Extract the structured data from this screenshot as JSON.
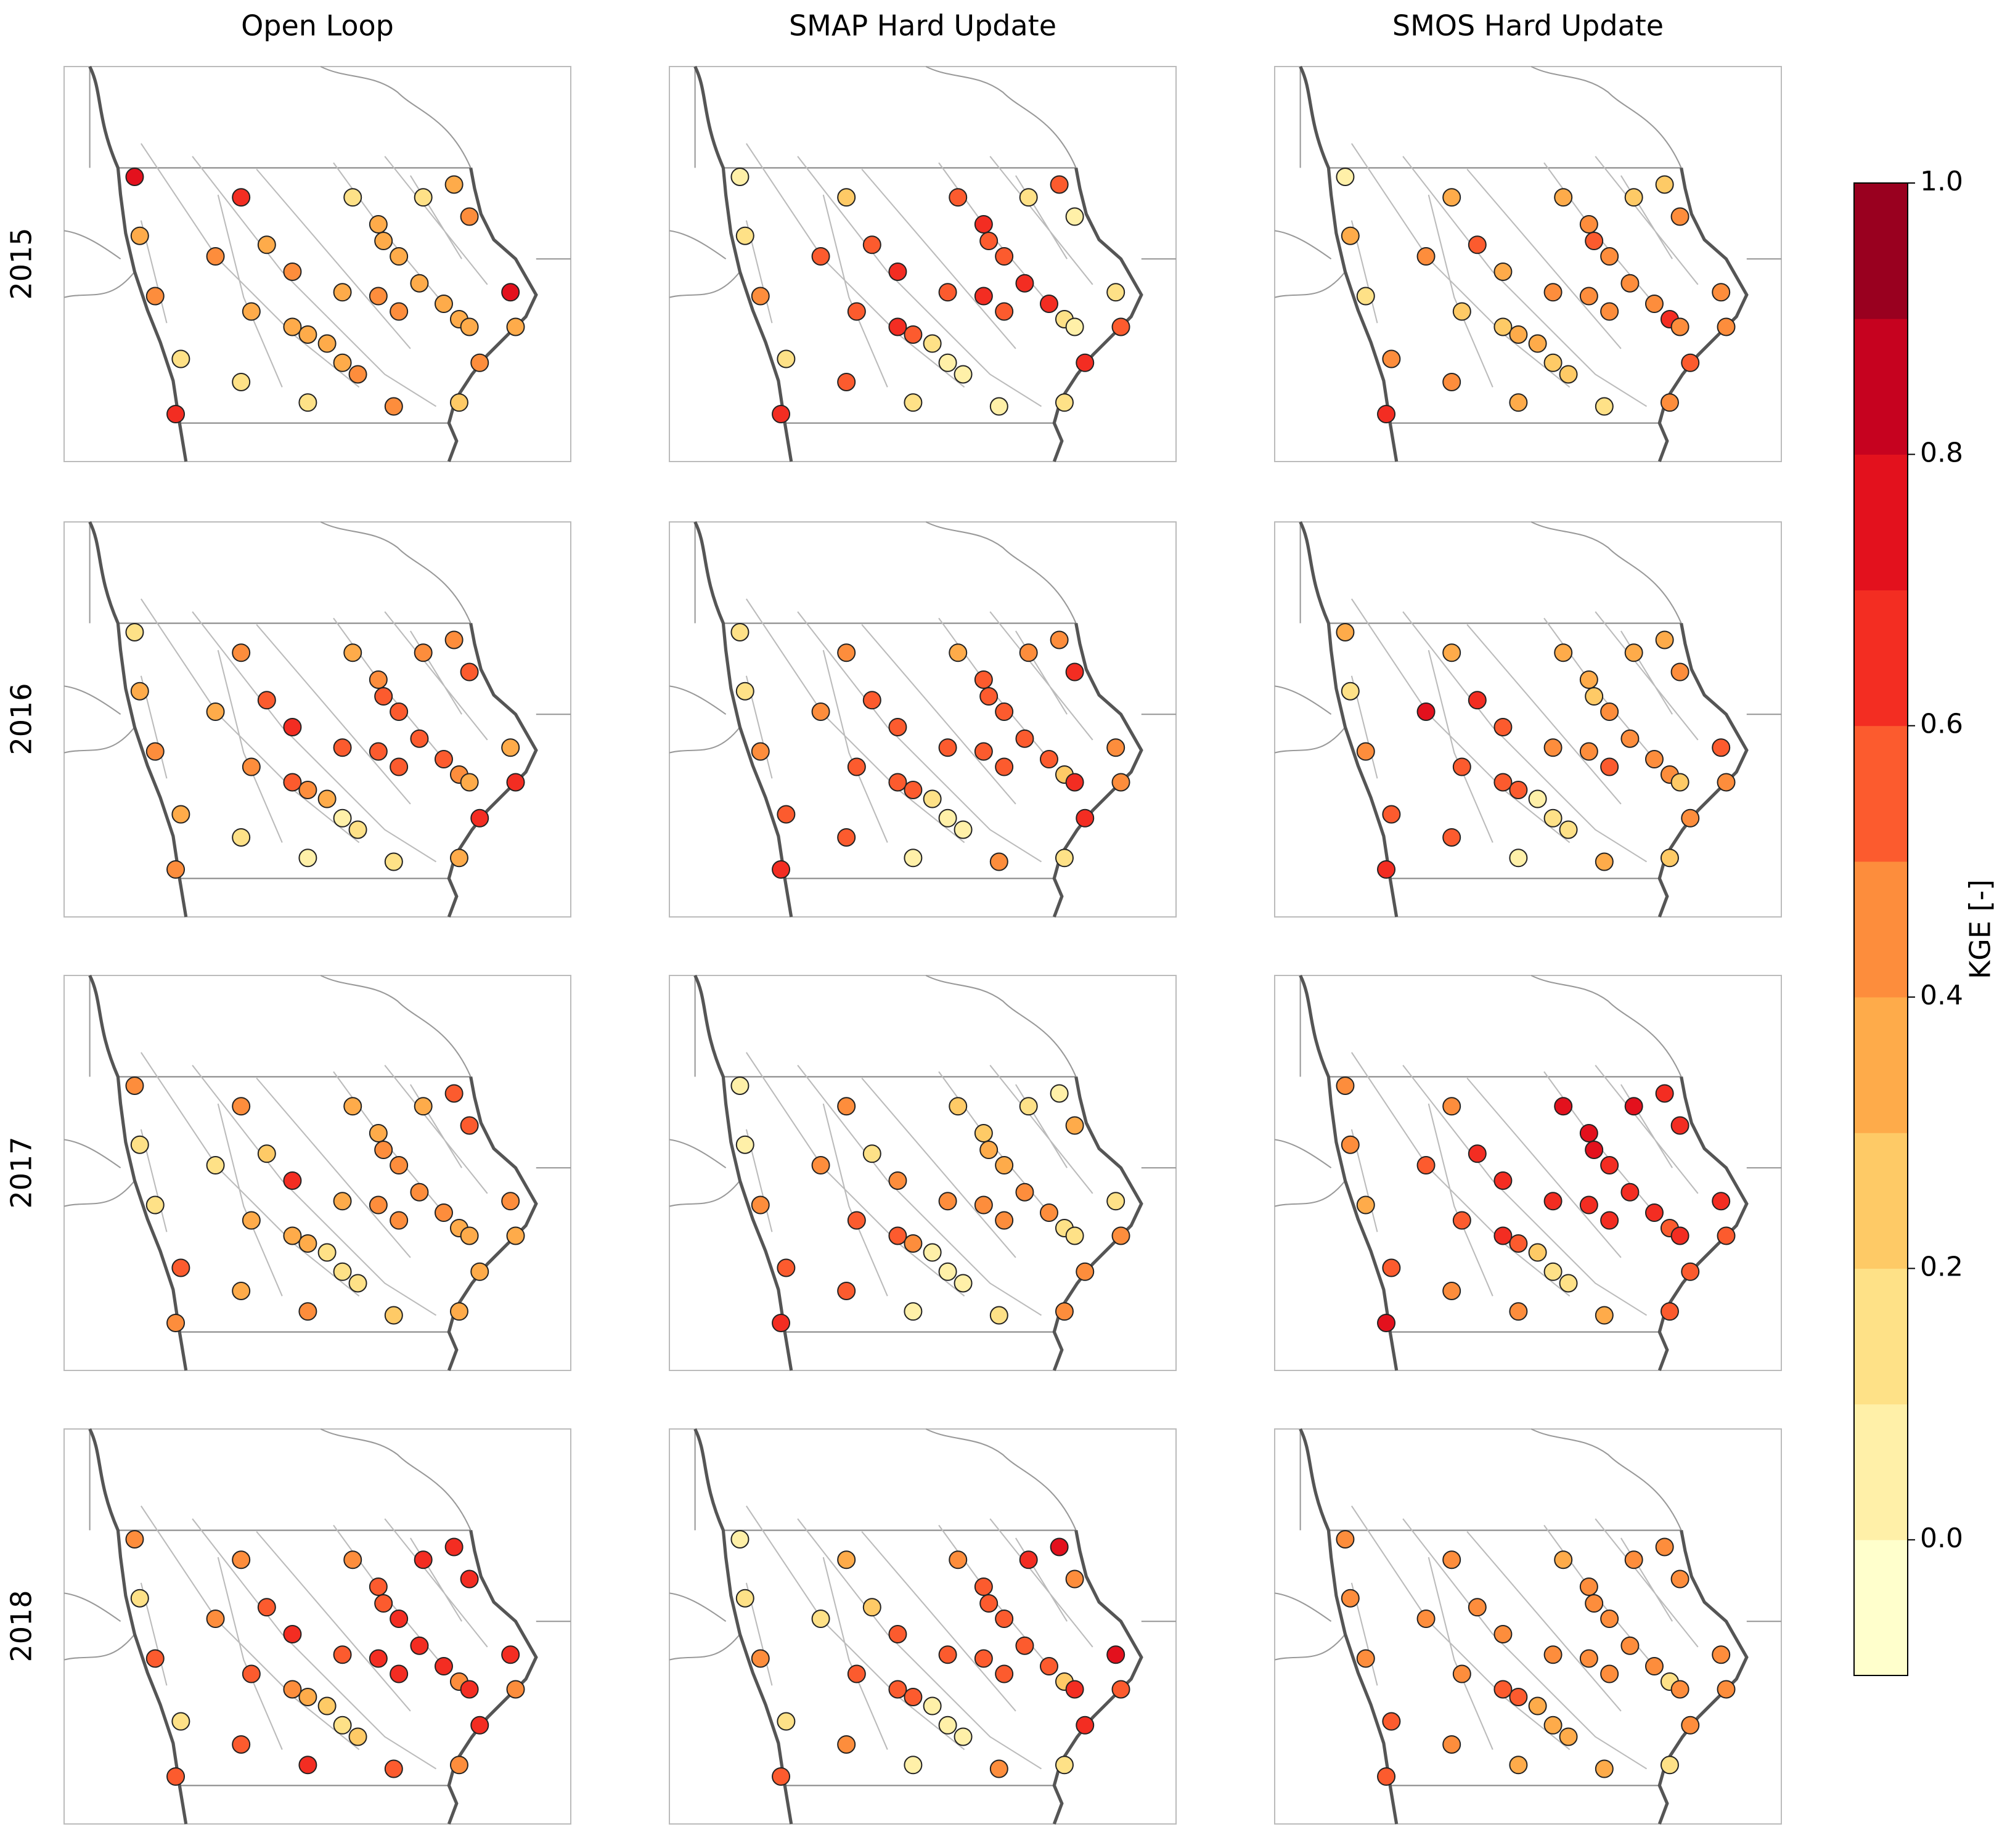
{
  "chart_data": {
    "type": "map",
    "columns": [
      "Open Loop",
      "SMAP Hard Update",
      "SMOS Hard Update"
    ],
    "rows": [
      "2015",
      "2016",
      "2017",
      "2018"
    ],
    "panels": [
      {
        "values": [
          0.75,
          0.35,
          0.4,
          0.1,
          0.7,
          0.7,
          0.45,
          0.35,
          0.4,
          0.3,
          0.35,
          0.35,
          0.35,
          0.35,
          0.4,
          0.1,
          0.1,
          0.15,
          0.3,
          0.3,
          0.35,
          0.35,
          0.35,
          0.3,
          0.35,
          0.15,
          0.3,
          0.45,
          0.75,
          0.35,
          0.4,
          0.4,
          0.4,
          0.2,
          0.4,
          0.3
        ]
      },
      {
        "values": [
          0.05,
          0.1,
          0.4,
          0.1,
          0.7,
          0.2,
          0.55,
          0.6,
          0.7,
          0.5,
          0.7,
          0.6,
          0.1,
          0.05,
          0.05,
          0.1,
          0.5,
          0.55,
          0.7,
          0.5,
          0.55,
          0.65,
          0.7,
          0.1,
          0.05,
          0.1,
          0.6,
          0.05,
          0.1,
          0.6,
          0.65,
          0.55,
          0.7,
          0.1,
          0.05,
          0.6
        ]
      },
      {
        "values": [
          0.05,
          0.3,
          0.1,
          0.4,
          0.7,
          0.3,
          0.4,
          0.5,
          0.35,
          0.25,
          0.25,
          0.3,
          0.3,
          0.2,
          0.25,
          0.3,
          0.4,
          0.3,
          0.45,
          0.5,
          0.45,
          0.4,
          0.45,
          0.65,
          0.4,
          0.2,
          0.2,
          0.45,
          0.4,
          0.4,
          0.4,
          0.45,
          0.5,
          0.4,
          0.1,
          0.4
        ]
      },
      {
        "values": [
          0.1,
          0.35,
          0.45,
          0.3,
          0.45,
          0.4,
          0.35,
          0.5,
          0.7,
          0.45,
          0.5,
          0.45,
          0.3,
          0.05,
          0.1,
          0.05,
          0.1,
          0.35,
          0.45,
          0.6,
          0.5,
          0.6,
          0.55,
          0.45,
          0.3,
          0.4,
          0.45,
          0.6,
          0.35,
          0.7,
          0.6,
          0.5,
          0.7,
          0.3,
          0.15,
          0.55
        ]
      },
      {
        "values": [
          0.1,
          0.1,
          0.4,
          0.5,
          0.65,
          0.45,
          0.45,
          0.55,
          0.5,
          0.55,
          0.6,
          0.55,
          0.1,
          0.05,
          0.05,
          0.05,
          0.55,
          0.35,
          0.5,
          0.55,
          0.55,
          0.6,
          0.55,
          0.2,
          0.65,
          0.45,
          0.4,
          0.7,
          0.45,
          0.4,
          0.6,
          0.55,
          0.7,
          0.1,
          0.4,
          0.55
        ]
      },
      {
        "values": [
          0.3,
          0.15,
          0.45,
          0.6,
          0.7,
          0.35,
          0.75,
          0.65,
          0.55,
          0.6,
          0.55,
          0.55,
          0.05,
          0.1,
          0.1,
          0.05,
          0.55,
          0.3,
          0.3,
          0.25,
          0.4,
          0.4,
          0.45,
          0.4,
          0.2,
          0.3,
          0.35,
          0.4,
          0.5,
          0.45,
          0.45,
          0.5,
          0.4,
          0.2,
          0.3,
          0.45
        ]
      },
      {
        "values": [
          0.45,
          0.1,
          0.15,
          0.5,
          0.45,
          0.45,
          0.15,
          0.2,
          0.7,
          0.3,
          0.35,
          0.3,
          0.1,
          0.15,
          0.1,
          0.4,
          0.35,
          0.35,
          0.3,
          0.45,
          0.4,
          0.45,
          0.4,
          0.35,
          0.3,
          0.35,
          0.55,
          0.6,
          0.45,
          0.35,
          0.4,
          0.4,
          0.35,
          0.35,
          0.25,
          0.3
        ]
      },
      {
        "values": [
          0.05,
          0.05,
          0.4,
          0.6,
          0.7,
          0.4,
          0.4,
          0.1,
          0.45,
          0.5,
          0.55,
          0.45,
          0.05,
          0.05,
          0.05,
          0.05,
          0.5,
          0.2,
          0.25,
          0.3,
          0.35,
          0.4,
          0.45,
          0.1,
          0.15,
          0.1,
          0.05,
          0.35,
          0.1,
          0.45,
          0.45,
          0.4,
          0.4,
          0.4,
          0.1,
          0.45
        ]
      },
      {
        "values": [
          0.45,
          0.45,
          0.35,
          0.6,
          0.75,
          0.45,
          0.6,
          0.7,
          0.65,
          0.6,
          0.65,
          0.6,
          0.2,
          0.15,
          0.15,
          0.4,
          0.45,
          0.75,
          0.75,
          0.75,
          0.7,
          0.7,
          0.65,
          0.6,
          0.7,
          0.75,
          0.7,
          0.65,
          0.65,
          0.6,
          0.7,
          0.65,
          0.55,
          0.5,
          0.3,
          0.65
        ]
      },
      {
        "values": [
          0.45,
          0.1,
          0.5,
          0.15,
          0.5,
          0.45,
          0.45,
          0.55,
          0.65,
          0.6,
          0.4,
          0.35,
          0.2,
          0.1,
          0.2,
          0.7,
          0.55,
          0.45,
          0.6,
          0.6,
          0.65,
          0.65,
          0.65,
          0.4,
          0.65,
          0.65,
          0.7,
          0.65,
          0.65,
          0.45,
          0.7,
          0.65,
          0.7,
          0.45,
          0.6,
          0.6
        ]
      },
      {
        "values": [
          0.05,
          0.1,
          0.4,
          0.15,
          0.55,
          0.35,
          0.15,
          0.2,
          0.55,
          0.5,
          0.6,
          0.55,
          0.05,
          0.05,
          0.05,
          0.05,
          0.4,
          0.45,
          0.6,
          0.6,
          0.55,
          0.6,
          0.55,
          0.2,
          0.65,
          0.7,
          0.75,
          0.45,
          0.75,
          0.6,
          0.55,
          0.55,
          0.7,
          0.1,
          0.45,
          0.55
        ]
      },
      {
        "values": [
          0.45,
          0.4,
          0.45,
          0.55,
          0.5,
          0.45,
          0.45,
          0.4,
          0.4,
          0.45,
          0.55,
          0.5,
          0.35,
          0.3,
          0.3,
          0.35,
          0.4,
          0.35,
          0.4,
          0.45,
          0.4,
          0.4,
          0.4,
          0.15,
          0.4,
          0.4,
          0.4,
          0.45,
          0.4,
          0.45,
          0.45,
          0.4,
          0.45,
          0.15,
          0.35,
          0.4
        ]
      }
    ],
    "colorbar": {
      "label": "KGE [-]",
      "lim": [
        -0.1,
        1.0
      ],
      "ticks": [
        {
          "value": 0,
          "label": "0.0"
        },
        0.2,
        0.4,
        0.6,
        0.8,
        {
          "value": 1,
          "label": "1.0"
        }
      ],
      "colors": [
        "#ffffcc",
        "#fff0a8",
        "#fee187",
        "#feca66",
        "#feab4a",
        "#fd8d3c",
        "#fc5b2e",
        "#f32d22",
        "#e3111d",
        "#c6021f",
        "#99001f"
      ]
    }
  }
}
